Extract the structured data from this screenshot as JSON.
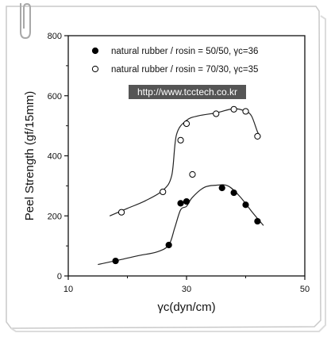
{
  "chart_data": {
    "type": "scatter",
    "title": "",
    "xlabel": "γc(dyn/cm)",
    "ylabel": "Peel Strength (gf/15mm)",
    "xlim": [
      10,
      50
    ],
    "ylim": [
      0,
      800
    ],
    "x_ticks": [
      10,
      30,
      50
    ],
    "y_ticks": [
      0,
      200,
      400,
      600,
      800
    ],
    "grid": false,
    "legend_placement": "top-left",
    "series": [
      {
        "name": "natural rubber / rosin = 50/50, γc=36",
        "marker": "filled-circle",
        "points": [
          {
            "x": 18,
            "y": 50
          },
          {
            "x": 27,
            "y": 103
          },
          {
            "x": 29,
            "y": 242
          },
          {
            "x": 30,
            "y": 248
          },
          {
            "x": 36,
            "y": 293
          },
          {
            "x": 38,
            "y": 277
          },
          {
            "x": 40,
            "y": 237
          },
          {
            "x": 42,
            "y": 182
          }
        ],
        "curve": [
          {
            "x": 15,
            "y": 38
          },
          {
            "x": 19,
            "y": 55
          },
          {
            "x": 22,
            "y": 68
          },
          {
            "x": 25,
            "y": 80
          },
          {
            "x": 27,
            "y": 103
          },
          {
            "x": 28,
            "y": 160
          },
          {
            "x": 29,
            "y": 220
          },
          {
            "x": 30,
            "y": 232
          },
          {
            "x": 31,
            "y": 262
          },
          {
            "x": 33,
            "y": 295
          },
          {
            "x": 35,
            "y": 302
          },
          {
            "x": 37,
            "y": 300
          },
          {
            "x": 39,
            "y": 265
          },
          {
            "x": 41,
            "y": 215
          },
          {
            "x": 43,
            "y": 168
          }
        ]
      },
      {
        "name": "natural rubber / rosin = 70/30, γc=35",
        "marker": "open-circle",
        "points": [
          {
            "x": 19,
            "y": 212
          },
          {
            "x": 26,
            "y": 280
          },
          {
            "x": 29,
            "y": 452
          },
          {
            "x": 30,
            "y": 507
          },
          {
            "x": 31,
            "y": 338
          },
          {
            "x": 35,
            "y": 540
          },
          {
            "x": 38,
            "y": 555
          },
          {
            "x": 40,
            "y": 548
          },
          {
            "x": 42,
            "y": 465
          }
        ],
        "curve": [
          {
            "x": 17,
            "y": 200
          },
          {
            "x": 20,
            "y": 225
          },
          {
            "x": 23,
            "y": 250
          },
          {
            "x": 26,
            "y": 285
          },
          {
            "x": 27.5,
            "y": 335
          },
          {
            "x": 28.3,
            "y": 470
          },
          {
            "x": 30,
            "y": 518
          },
          {
            "x": 32,
            "y": 533
          },
          {
            "x": 35,
            "y": 543
          },
          {
            "x": 38,
            "y": 557
          },
          {
            "x": 40,
            "y": 548
          },
          {
            "x": 41,
            "y": 532
          },
          {
            "x": 42,
            "y": 480
          },
          {
            "x": 42.5,
            "y": 462
          }
        ]
      }
    ]
  },
  "watermark": {
    "text": "http://www.tcctech.co.kr"
  }
}
